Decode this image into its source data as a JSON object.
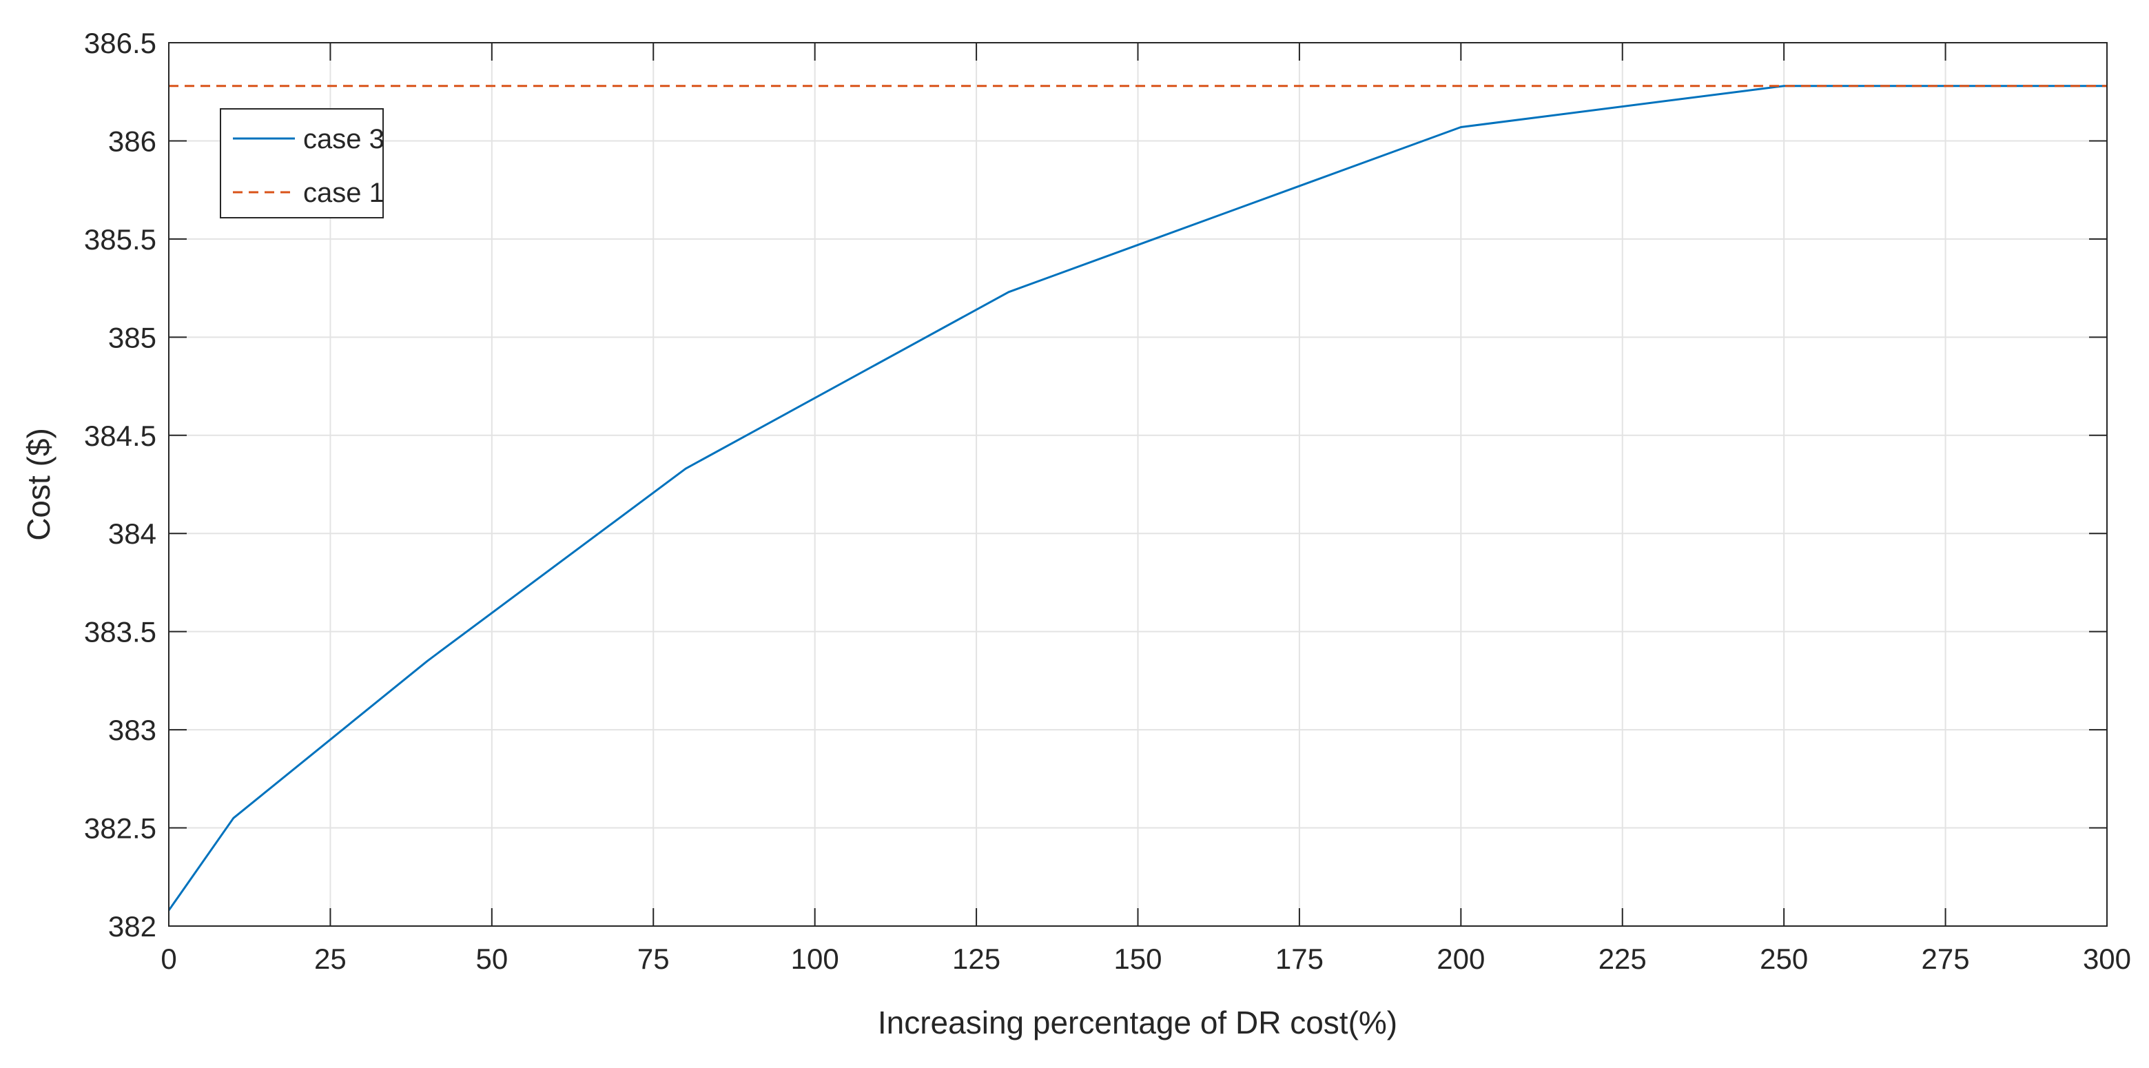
{
  "chart_data": {
    "type": "line",
    "title": "",
    "xlabel": "Increasing percentage of DR cost(%)",
    "ylabel": "Cost ($)",
    "xlim": [
      0,
      300
    ],
    "ylim": [
      382,
      386.5
    ],
    "grid": true,
    "legend_position": "top-left",
    "x_ticks": [
      0,
      25,
      50,
      75,
      100,
      125,
      150,
      175,
      200,
      225,
      250,
      275,
      300
    ],
    "x_tick_labels": [
      "0",
      "25",
      "50",
      "75",
      "100",
      "125",
      "150",
      "175",
      "200",
      "225",
      "250",
      "275",
      "300"
    ],
    "y_ticks": [
      382,
      382.5,
      383,
      383.5,
      384,
      384.5,
      385,
      385.5,
      386,
      386.5
    ],
    "y_tick_labels": [
      "382",
      "382.5",
      "383",
      "383.5",
      "384",
      "384.5",
      "385",
      "385.5",
      "386",
      "386.5"
    ],
    "series": [
      {
        "name": "case 3",
        "color": "#0072bd",
        "style": "solid",
        "x": [
          0,
          10,
          40,
          80,
          130,
          200,
          250,
          300
        ],
        "y": [
          382.08,
          382.55,
          383.35,
          384.33,
          385.23,
          386.07,
          386.28,
          386.28
        ]
      },
      {
        "name": "case 1",
        "color": "#d95319",
        "style": "dashed",
        "x": [
          0,
          300
        ],
        "y": [
          386.28,
          386.28
        ]
      }
    ]
  }
}
